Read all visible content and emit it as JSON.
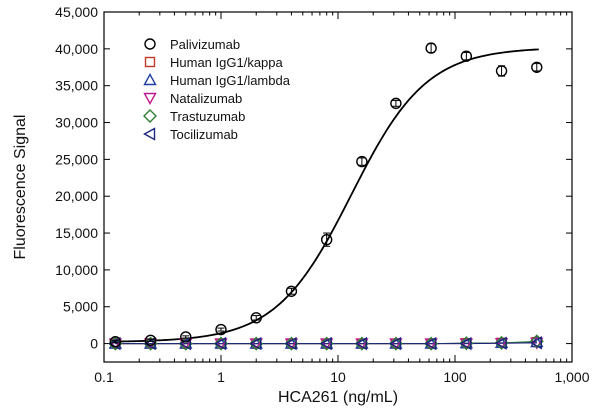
{
  "chart_data": {
    "type": "scatter",
    "xlabel": "HCA261 (ng/mL)",
    "ylabel": "Fluorescence Signal",
    "xscale": "log",
    "xlim": [
      0.1,
      1000
    ],
    "ylim": [
      -2500,
      45000
    ],
    "grid": false,
    "legend_position": "top-left",
    "x_ticks": [
      {
        "value": 0.1,
        "label": "0.1"
      },
      {
        "value": 1,
        "label": "1"
      },
      {
        "value": 10,
        "label": "10"
      },
      {
        "value": 100,
        "label": "100"
      },
      {
        "value": 1000,
        "label": "1,000"
      }
    ],
    "y_ticks": [
      {
        "value": 0,
        "label": "0"
      },
      {
        "value": 5000,
        "label": "5,000"
      },
      {
        "value": 10000,
        "label": "10,000"
      },
      {
        "value": 15000,
        "label": "15,000"
      },
      {
        "value": 20000,
        "label": "20,000"
      },
      {
        "value": 25000,
        "label": "25,000"
      },
      {
        "value": 30000,
        "label": "30,000"
      },
      {
        "value": 35000,
        "label": "35,000"
      },
      {
        "value": 40000,
        "label": "40,000"
      },
      {
        "value": 45000,
        "label": "45,000"
      }
    ],
    "fit_curve": {
      "series": "Palivizumab",
      "model": "4PL",
      "bottom": 200,
      "top": 40200,
      "ec50": 13,
      "hill": 1.35,
      "color": "#000000"
    },
    "series": [
      {
        "name": "Palivizumab",
        "marker": "circle",
        "color": "#000000",
        "x": [
          0.125,
          0.25,
          0.5,
          1,
          2,
          4,
          8,
          16,
          31.25,
          62.5,
          125,
          250,
          500
        ],
        "y": [
          250,
          450,
          900,
          1900,
          3500,
          7100,
          14100,
          24700,
          32600,
          40100,
          39000,
          37000,
          37500
        ],
        "error": [
          150,
          150,
          150,
          200,
          300,
          400,
          900,
          500,
          400,
          600,
          500,
          700,
          500
        ]
      },
      {
        "name": "Human IgG1/kappa",
        "marker": "square",
        "color": "#c0392b",
        "x": [
          0.125,
          0.25,
          0.5,
          1,
          2,
          4,
          8,
          16,
          31.25,
          62.5,
          125,
          250,
          500
        ],
        "y": [
          0,
          0,
          0,
          0,
          0,
          0,
          0,
          0,
          0,
          0,
          50,
          100,
          200
        ]
      },
      {
        "name": "Human IgG1/lambda",
        "marker": "triangle-up",
        "color": "#1f3fa3",
        "x": [
          0.125,
          0.25,
          0.5,
          1,
          2,
          4,
          8,
          16,
          31.25,
          62.5,
          125,
          250,
          500
        ],
        "y": [
          0,
          0,
          0,
          0,
          0,
          0,
          0,
          0,
          0,
          0,
          50,
          100,
          200
        ]
      },
      {
        "name": "Natalizumab",
        "marker": "triangle-down",
        "color": "#c2188f",
        "x": [
          0.125,
          0.25,
          0.5,
          1,
          2,
          4,
          8,
          16,
          31.25,
          62.5,
          125,
          250,
          500
        ],
        "y": [
          0,
          0,
          0,
          0,
          0,
          0,
          0,
          0,
          0,
          0,
          0,
          50,
          100
        ]
      },
      {
        "name": "Trastuzumab",
        "marker": "diamond",
        "color": "#2e7d32",
        "x": [
          0.125,
          0.25,
          0.5,
          1,
          2,
          4,
          8,
          16,
          31.25,
          62.5,
          125,
          250,
          500
        ],
        "y": [
          0,
          0,
          0,
          0,
          0,
          0,
          0,
          0,
          0,
          0,
          50,
          100,
          300
        ]
      },
      {
        "name": "Tocilizumab",
        "marker": "triangle-left",
        "color": "#1a237e",
        "x": [
          0.125,
          0.25,
          0.5,
          1,
          2,
          4,
          8,
          16,
          31.25,
          62.5,
          125,
          250,
          500
        ],
        "y": [
          0,
          0,
          0,
          0,
          0,
          0,
          0,
          0,
          0,
          0,
          0,
          50,
          100
        ]
      }
    ]
  }
}
